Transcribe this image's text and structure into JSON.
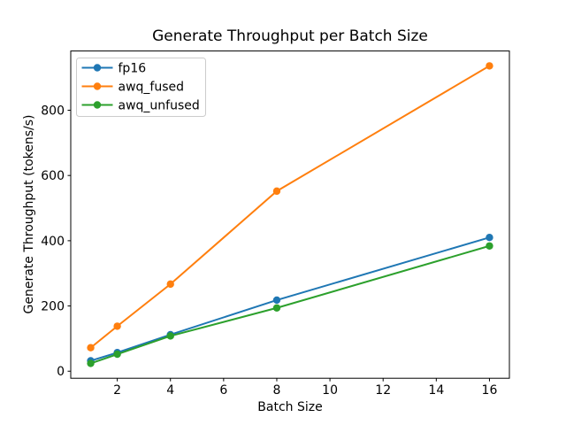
{
  "chart_data": {
    "type": "line",
    "title": "Generate Throughput per Batch Size",
    "xlabel": "Batch Size",
    "ylabel": "Generate Throughput (tokens/s)",
    "x": [
      1,
      2,
      4,
      8,
      16
    ],
    "series": [
      {
        "name": "fp16",
        "color": "#1f77b4",
        "values": [
          32,
          57,
          112,
          218,
          410
        ]
      },
      {
        "name": "awq_fused",
        "color": "#ff7f0e",
        "values": [
          72,
          138,
          267,
          552,
          936
        ]
      },
      {
        "name": "awq_unfused",
        "color": "#2ca02c",
        "values": [
          24,
          52,
          108,
          194,
          384
        ]
      }
    ],
    "x_ticks": [
      2,
      4,
      6,
      8,
      10,
      12,
      14,
      16
    ],
    "y_ticks": [
      0,
      200,
      400,
      600,
      800
    ],
    "xlim": [
      0.25,
      16.75
    ],
    "ylim": [
      -21.6,
      981.6
    ],
    "grid": false,
    "marker": "o",
    "legend_position": "upper left",
    "colors": {
      "spine": "#000000",
      "text": "#000000",
      "legend_border": "#cccccc",
      "background": "#ffffff"
    }
  }
}
